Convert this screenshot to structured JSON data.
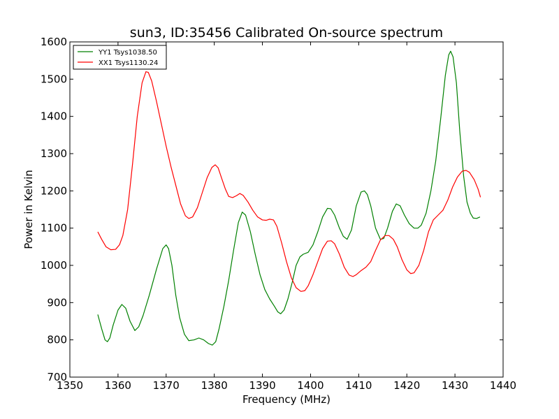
{
  "chart_data": {
    "type": "line",
    "title": "sun3, ID:35456 Calibrated On-source spectrum",
    "xlabel": "Frequency (MHz)",
    "ylabel": "Power in Kelvin",
    "xlim": [
      1350,
      1440
    ],
    "ylim": [
      700,
      1600
    ],
    "xticks": [
      1350,
      1360,
      1370,
      1380,
      1390,
      1400,
      1410,
      1420,
      1430,
      1440
    ],
    "yticks": [
      700,
      800,
      900,
      1000,
      1100,
      1200,
      1300,
      1400,
      1500,
      1600
    ],
    "grid": false,
    "legend_position": "upper-left",
    "series": [
      {
        "name": "YY1 Tsys1038.50",
        "color": "#008000",
        "points": [
          [
            1355.8,
            868
          ],
          [
            1356.6,
            830
          ],
          [
            1357.3,
            800
          ],
          [
            1357.8,
            795
          ],
          [
            1358.3,
            805
          ],
          [
            1359.0,
            840
          ],
          [
            1360.0,
            880
          ],
          [
            1360.8,
            895
          ],
          [
            1361.6,
            885
          ],
          [
            1362.5,
            850
          ],
          [
            1363.5,
            825
          ],
          [
            1364.3,
            835
          ],
          [
            1365.2,
            865
          ],
          [
            1366.5,
            920
          ],
          [
            1368.0,
            990
          ],
          [
            1369.3,
            1045
          ],
          [
            1370.0,
            1055
          ],
          [
            1370.5,
            1045
          ],
          [
            1371.2,
            1000
          ],
          [
            1372.0,
            920
          ],
          [
            1372.8,
            860
          ],
          [
            1373.8,
            815
          ],
          [
            1374.7,
            798
          ],
          [
            1375.8,
            800
          ],
          [
            1376.8,
            805
          ],
          [
            1377.8,
            800
          ],
          [
            1378.8,
            790
          ],
          [
            1379.6,
            786
          ],
          [
            1380.3,
            795
          ],
          [
            1381.0,
            830
          ],
          [
            1382.0,
            890
          ],
          [
            1383.0,
            960
          ],
          [
            1384.0,
            1040
          ],
          [
            1385.0,
            1115
          ],
          [
            1385.8,
            1143
          ],
          [
            1386.5,
            1135
          ],
          [
            1387.5,
            1090
          ],
          [
            1388.5,
            1030
          ],
          [
            1389.5,
            975
          ],
          [
            1390.5,
            935
          ],
          [
            1391.5,
            910
          ],
          [
            1392.5,
            890
          ],
          [
            1393.2,
            875
          ],
          [
            1393.8,
            870
          ],
          [
            1394.5,
            880
          ],
          [
            1395.3,
            910
          ],
          [
            1396.2,
            955
          ],
          [
            1397.0,
            1000
          ],
          [
            1397.8,
            1023
          ],
          [
            1398.5,
            1030
          ],
          [
            1399.5,
            1035
          ],
          [
            1400.5,
            1055
          ],
          [
            1401.5,
            1090
          ],
          [
            1402.5,
            1130
          ],
          [
            1403.5,
            1153
          ],
          [
            1404.2,
            1152
          ],
          [
            1405.0,
            1135
          ],
          [
            1406.0,
            1100
          ],
          [
            1406.8,
            1078
          ],
          [
            1407.6,
            1070
          ],
          [
            1408.5,
            1095
          ],
          [
            1409.5,
            1160
          ],
          [
            1410.5,
            1197
          ],
          [
            1411.2,
            1200
          ],
          [
            1411.8,
            1190
          ],
          [
            1412.5,
            1160
          ],
          [
            1413.5,
            1100
          ],
          [
            1414.5,
            1070
          ],
          [
            1415.2,
            1072
          ],
          [
            1416.0,
            1100
          ],
          [
            1417.0,
            1145
          ],
          [
            1417.8,
            1165
          ],
          [
            1418.6,
            1160
          ],
          [
            1419.5,
            1135
          ],
          [
            1420.5,
            1112
          ],
          [
            1421.5,
            1100
          ],
          [
            1422.3,
            1100
          ],
          [
            1423.0,
            1108
          ],
          [
            1424.0,
            1140
          ],
          [
            1425.0,
            1200
          ],
          [
            1426.0,
            1280
          ],
          [
            1427.0,
            1390
          ],
          [
            1428.0,
            1510
          ],
          [
            1428.7,
            1565
          ],
          [
            1429.1,
            1575
          ],
          [
            1429.6,
            1560
          ],
          [
            1430.3,
            1490
          ],
          [
            1431.0,
            1360
          ],
          [
            1431.8,
            1240
          ],
          [
            1432.5,
            1170
          ],
          [
            1433.2,
            1140
          ],
          [
            1433.8,
            1127
          ],
          [
            1434.5,
            1126
          ],
          [
            1435.2,
            1130
          ]
        ]
      },
      {
        "name": "XX1 Tsys1130.24",
        "color": "#ff0000",
        "points": [
          [
            1355.8,
            1090
          ],
          [
            1356.6,
            1070
          ],
          [
            1357.5,
            1050
          ],
          [
            1358.5,
            1042
          ],
          [
            1359.5,
            1043
          ],
          [
            1360.3,
            1055
          ],
          [
            1361.0,
            1080
          ],
          [
            1362.0,
            1150
          ],
          [
            1363.0,
            1270
          ],
          [
            1364.0,
            1400
          ],
          [
            1365.0,
            1490
          ],
          [
            1365.8,
            1520
          ],
          [
            1366.3,
            1518
          ],
          [
            1367.0,
            1495
          ],
          [
            1368.0,
            1440
          ],
          [
            1369.0,
            1380
          ],
          [
            1370.0,
            1320
          ],
          [
            1371.0,
            1265
          ],
          [
            1372.0,
            1215
          ],
          [
            1373.0,
            1165
          ],
          [
            1374.0,
            1133
          ],
          [
            1374.7,
            1126
          ],
          [
            1375.5,
            1130
          ],
          [
            1376.5,
            1155
          ],
          [
            1377.5,
            1195
          ],
          [
            1378.5,
            1235
          ],
          [
            1379.5,
            1263
          ],
          [
            1380.2,
            1270
          ],
          [
            1380.8,
            1262
          ],
          [
            1381.5,
            1235
          ],
          [
            1382.3,
            1205
          ],
          [
            1383.0,
            1185
          ],
          [
            1383.8,
            1182
          ],
          [
            1384.6,
            1187
          ],
          [
            1385.3,
            1193
          ],
          [
            1386.0,
            1188
          ],
          [
            1387.0,
            1170
          ],
          [
            1388.0,
            1148
          ],
          [
            1389.0,
            1130
          ],
          [
            1390.0,
            1122
          ],
          [
            1390.8,
            1121
          ],
          [
            1391.5,
            1124
          ],
          [
            1392.3,
            1122
          ],
          [
            1393.0,
            1105
          ],
          [
            1394.0,
            1060
          ],
          [
            1395.0,
            1010
          ],
          [
            1396.0,
            967
          ],
          [
            1397.0,
            940
          ],
          [
            1398.0,
            930
          ],
          [
            1398.8,
            932
          ],
          [
            1399.5,
            945
          ],
          [
            1400.5,
            975
          ],
          [
            1401.5,
            1010
          ],
          [
            1402.5,
            1045
          ],
          [
            1403.5,
            1065
          ],
          [
            1404.3,
            1066
          ],
          [
            1405.0,
            1058
          ],
          [
            1406.0,
            1030
          ],
          [
            1407.0,
            995
          ],
          [
            1408.0,
            974
          ],
          [
            1408.8,
            970
          ],
          [
            1409.5,
            975
          ],
          [
            1410.5,
            986
          ],
          [
            1411.5,
            995
          ],
          [
            1412.5,
            1010
          ],
          [
            1413.5,
            1040
          ],
          [
            1414.5,
            1068
          ],
          [
            1415.5,
            1080
          ],
          [
            1416.3,
            1080
          ],
          [
            1417.2,
            1070
          ],
          [
            1418.0,
            1050
          ],
          [
            1419.0,
            1015
          ],
          [
            1420.0,
            988
          ],
          [
            1420.8,
            978
          ],
          [
            1421.5,
            980
          ],
          [
            1422.5,
            1000
          ],
          [
            1423.5,
            1040
          ],
          [
            1424.5,
            1090
          ],
          [
            1425.5,
            1122
          ],
          [
            1426.5,
            1135
          ],
          [
            1427.5,
            1148
          ],
          [
            1428.5,
            1175
          ],
          [
            1429.5,
            1210
          ],
          [
            1430.5,
            1237
          ],
          [
            1431.5,
            1253
          ],
          [
            1432.3,
            1255
          ],
          [
            1433.0,
            1250
          ],
          [
            1434.0,
            1230
          ],
          [
            1434.8,
            1205
          ],
          [
            1435.3,
            1183
          ]
        ]
      }
    ]
  }
}
